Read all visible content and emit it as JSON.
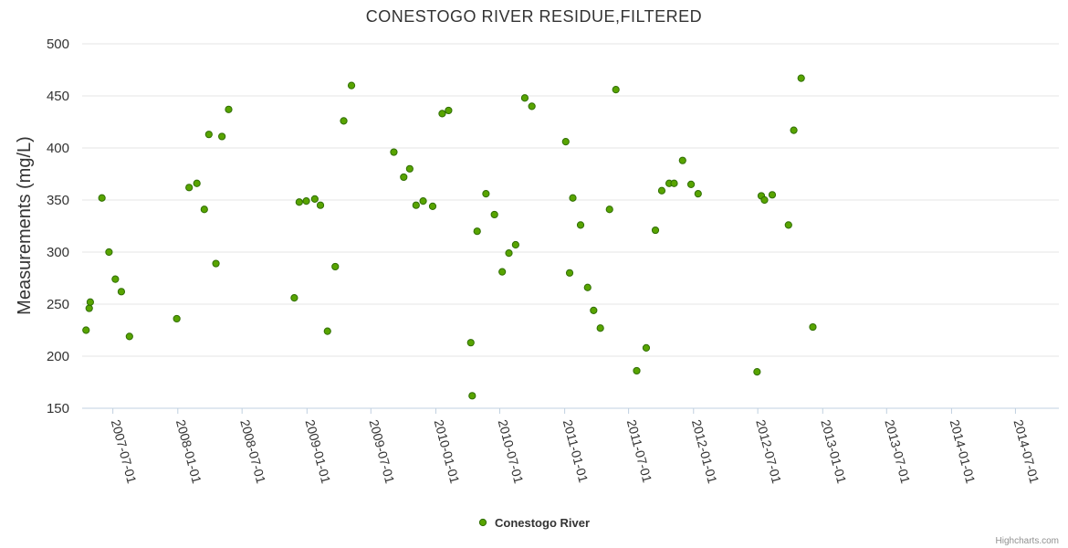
{
  "chart_data": {
    "type": "scatter",
    "title": "CONESTOGO RIVER RESIDUE,FILTERED",
    "ylabel": "Measurements (mg/L)",
    "xlabel": "",
    "ylim": [
      150,
      500
    ],
    "yticks": [
      150,
      200,
      250,
      300,
      350,
      400,
      450,
      500
    ],
    "xlim": [
      "2007-04-05",
      "2014-11-01"
    ],
    "xticks": [
      "2007-07-01",
      "2008-01-01",
      "2008-07-01",
      "2009-01-01",
      "2009-07-01",
      "2010-01-01",
      "2010-07-01",
      "2011-01-01",
      "2011-07-01",
      "2012-01-01",
      "2012-07-01",
      "2013-01-01",
      "2013-07-01",
      "2014-01-01",
      "2014-07-01"
    ],
    "grid": true,
    "legend_position": "bottom-center",
    "series": [
      {
        "name": "Conestogo River",
        "color": "#58a400",
        "points": [
          {
            "x": "2007-04-16",
            "y": 225
          },
          {
            "x": "2007-04-25",
            "y": 246
          },
          {
            "x": "2007-04-28",
            "y": 252
          },
          {
            "x": "2007-05-31",
            "y": 352
          },
          {
            "x": "2007-06-20",
            "y": 300
          },
          {
            "x": "2007-07-08",
            "y": 274
          },
          {
            "x": "2007-07-25",
            "y": 262
          },
          {
            "x": "2007-08-17",
            "y": 219
          },
          {
            "x": "2007-12-29",
            "y": 236
          },
          {
            "x": "2008-02-02",
            "y": 362
          },
          {
            "x": "2008-02-24",
            "y": 366
          },
          {
            "x": "2008-03-16",
            "y": 341
          },
          {
            "x": "2008-03-29",
            "y": 413
          },
          {
            "x": "2008-04-18",
            "y": 289
          },
          {
            "x": "2008-05-05",
            "y": 411
          },
          {
            "x": "2008-05-24",
            "y": 437
          },
          {
            "x": "2008-11-26",
            "y": 256
          },
          {
            "x": "2008-12-10",
            "y": 348
          },
          {
            "x": "2008-12-30",
            "y": 349
          },
          {
            "x": "2009-01-23",
            "y": 351
          },
          {
            "x": "2009-02-08",
            "y": 345
          },
          {
            "x": "2009-02-28",
            "y": 224
          },
          {
            "x": "2009-03-22",
            "y": 286
          },
          {
            "x": "2009-04-15",
            "y": 426
          },
          {
            "x": "2009-05-07",
            "y": 460
          },
          {
            "x": "2009-09-04",
            "y": 396
          },
          {
            "x": "2009-10-02",
            "y": 372
          },
          {
            "x": "2009-10-19",
            "y": 380
          },
          {
            "x": "2009-11-06",
            "y": 345
          },
          {
            "x": "2009-11-26",
            "y": 349
          },
          {
            "x": "2009-12-23",
            "y": 344
          },
          {
            "x": "2010-01-19",
            "y": 433
          },
          {
            "x": "2010-02-06",
            "y": 436
          },
          {
            "x": "2010-04-10",
            "y": 213
          },
          {
            "x": "2010-04-14",
            "y": 162
          },
          {
            "x": "2010-04-28",
            "y": 320
          },
          {
            "x": "2010-05-23",
            "y": 356
          },
          {
            "x": "2010-06-16",
            "y": 336
          },
          {
            "x": "2010-07-08",
            "y": 281
          },
          {
            "x": "2010-07-27",
            "y": 299
          },
          {
            "x": "2010-08-15",
            "y": 307
          },
          {
            "x": "2010-09-10",
            "y": 448
          },
          {
            "x": "2010-09-30",
            "y": 440
          },
          {
            "x": "2011-01-04",
            "y": 406
          },
          {
            "x": "2011-01-15",
            "y": 280
          },
          {
            "x": "2011-01-24",
            "y": 352
          },
          {
            "x": "2011-02-15",
            "y": 326
          },
          {
            "x": "2011-03-07",
            "y": 266
          },
          {
            "x": "2011-03-24",
            "y": 244
          },
          {
            "x": "2011-04-12",
            "y": 227
          },
          {
            "x": "2011-05-08",
            "y": 341
          },
          {
            "x": "2011-05-26",
            "y": 456
          },
          {
            "x": "2011-07-24",
            "y": 186
          },
          {
            "x": "2011-08-20",
            "y": 208
          },
          {
            "x": "2011-09-15",
            "y": 321
          },
          {
            "x": "2011-10-03",
            "y": 359
          },
          {
            "x": "2011-10-24",
            "y": 366
          },
          {
            "x": "2011-11-07",
            "y": 366
          },
          {
            "x": "2011-12-01",
            "y": 388
          },
          {
            "x": "2011-12-25",
            "y": 365
          },
          {
            "x": "2012-01-14",
            "y": 356
          },
          {
            "x": "2012-06-29",
            "y": 185
          },
          {
            "x": "2012-07-11",
            "y": 354
          },
          {
            "x": "2012-07-20",
            "y": 350
          },
          {
            "x": "2012-08-11",
            "y": 355
          },
          {
            "x": "2012-09-26",
            "y": 326
          },
          {
            "x": "2012-10-11",
            "y": 417
          },
          {
            "x": "2012-11-01",
            "y": 467
          },
          {
            "x": "2012-12-04",
            "y": 228
          }
        ]
      }
    ]
  },
  "credits": "Highcharts.com"
}
